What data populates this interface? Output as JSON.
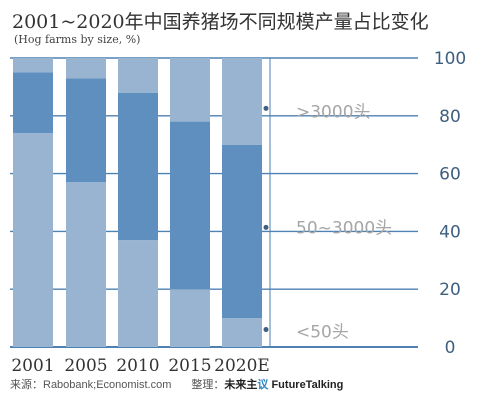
{
  "title": "2001~2020年中国养猪场不同规模产量占比变化",
  "subtitle": "(Hog farms by size, %)",
  "colors": {
    "small": "#98b4d1",
    "medium": "#5e8fbe",
    "large": "#98b4d1",
    "axis": "#4f81b3",
    "label": "#a6a6a6",
    "tick": "#3f5f80"
  },
  "chart_data": {
    "type": "bar",
    "stacked": true,
    "categories": [
      "2001",
      "2005",
      "2010",
      "2015",
      "2020E"
    ],
    "series": [
      {
        "name": "<50头",
        "values": [
          74,
          57,
          37,
          20,
          10
        ]
      },
      {
        "name": "50~3000头",
        "values": [
          21,
          36,
          51,
          58,
          60
        ]
      },
      {
        "name": ">3000头",
        "values": [
          5,
          7,
          12,
          22,
          30
        ]
      }
    ],
    "ylim": [
      0,
      100
    ],
    "yticks": [
      0,
      20,
      40,
      60,
      80,
      100
    ],
    "axis_side": "right",
    "legend": "right, inline labels"
  },
  "footer": {
    "source_label": "来源：",
    "source_text": "Rabobank;Economist.com",
    "org_label": "整理：",
    "org_brand_a": "未来主",
    "org_brand_b": "议",
    "org_brand_c": " FutureTalking"
  }
}
